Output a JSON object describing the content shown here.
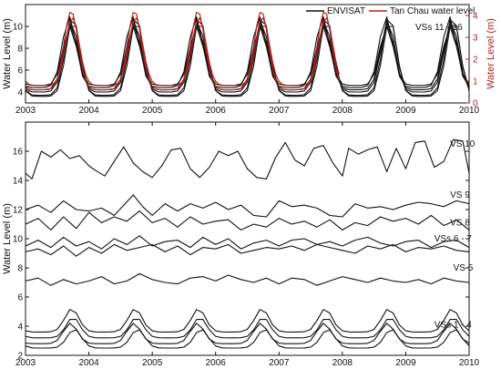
{
  "colors": {
    "envisat": "#111111",
    "tanchau": "#b22222",
    "axis": "#111111",
    "right_axis": "#b22222"
  },
  "chart_data": [
    {
      "type": "line",
      "panel": "top",
      "xlim": [
        2003,
        2010
      ],
      "ylim": [
        3,
        12
      ],
      "y2lim": [
        0,
        4.5
      ],
      "ylabel": "Water Level (m)",
      "y2label": "Water Level (m)",
      "x_ticks": [
        "2003",
        "2004",
        "2005",
        "2006",
        "2007",
        "2008",
        "2009",
        "2010"
      ],
      "y_ticks": [
        "4",
        "6",
        "8",
        "10"
      ],
      "y2_ticks": [
        "0",
        "1",
        "2",
        "3",
        "4"
      ],
      "annotation": "VSs 11 - 16",
      "legend": {
        "placement": "top-right",
        "entries": [
          "ENVISAT",
          "Tan Chau water level"
        ]
      },
      "envisat_series": [
        {
          "name": "ENVISAT",
          "start": 2003.0,
          "end": 2010.0,
          "dx": 0.1,
          "phase": 0.69,
          "low": 4.4,
          "high": 10.9
        },
        {
          "start": 2003.0,
          "end": 2010.0,
          "dx": 0.1,
          "phase": 0.72,
          "low": 4.0,
          "high": 10.6
        },
        {
          "start": 2003.0,
          "end": 2010.0,
          "dx": 0.1,
          "phase": 0.74,
          "low": 3.7,
          "high": 11.1
        },
        {
          "start": 2003.0,
          "end": 2010.0,
          "dx": 0.1,
          "phase": 0.71,
          "low": 4.2,
          "high": 10.3
        },
        {
          "start": 2003.0,
          "end": 2010.0,
          "dx": 0.1,
          "phase": 0.75,
          "low": 3.6,
          "high": 10.7
        },
        {
          "start": 2003.0,
          "end": 2010.0,
          "dx": 0.1,
          "phase": 0.7,
          "low": 4.6,
          "high": 10.0
        }
      ],
      "tanchau_series": [
        {
          "name": "Tan Chau water level",
          "start": 2003.0,
          "end": 2007.95,
          "dx": 0.05,
          "phase": 0.72,
          "low": 0.6,
          "high": 4.2
        },
        {
          "start": 2003.0,
          "end": 2007.95,
          "dx": 0.05,
          "phase": 0.74,
          "low": 0.8,
          "high": 3.9
        }
      ]
    },
    {
      "type": "line",
      "panel": "bottom",
      "xlim": [
        2003,
        2010
      ],
      "ylim": [
        2,
        18
      ],
      "ylabel": "Water Level (m)",
      "x_ticks": [
        "2003",
        "2004",
        "2005",
        "2006",
        "2007",
        "2008",
        "2009",
        "2010"
      ],
      "y_ticks": [
        "2",
        "4",
        "6",
        "8",
        "10",
        "12",
        "14",
        "16"
      ],
      "series": [
        {
          "name": "VS 10",
          "x": [
            2003.0,
            2003.1,
            2003.25,
            2003.4,
            2003.55,
            2003.7,
            2003.85,
            2004.0,
            2004.1,
            2004.25,
            2004.4,
            2004.55,
            2004.7,
            2004.85,
            2005.0,
            2005.15,
            2005.3,
            2005.45,
            2005.6,
            2005.75,
            2005.9,
            2006.05,
            2006.2,
            2006.35,
            2006.5,
            2006.65,
            2006.8,
            2006.95,
            2007.1,
            2007.25,
            2007.4,
            2007.55,
            2007.7,
            2007.85,
            2008.0,
            2008.1,
            2008.25,
            2008.4,
            2008.55,
            2008.7,
            2008.85,
            2009.0,
            2009.15,
            2009.3,
            2009.45,
            2009.6,
            2009.75,
            2009.9,
            2010.0
          ],
          "y": [
            14.5,
            14.1,
            16.0,
            15.6,
            16.1,
            15.5,
            15.7,
            15.0,
            14.7,
            14.3,
            15.3,
            16.3,
            15.2,
            14.6,
            14.2,
            15.0,
            16.1,
            16.2,
            14.8,
            14.2,
            14.9,
            16.0,
            15.7,
            16.0,
            14.8,
            14.2,
            14.1,
            15.6,
            16.6,
            15.4,
            15.0,
            16.2,
            16.4,
            15.2,
            14.3,
            16.2,
            15.8,
            16.1,
            16.3,
            14.6,
            16.2,
            14.8,
            16.6,
            16.7,
            14.9,
            15.3,
            16.8,
            16.7,
            14.5
          ]
        },
        {
          "name": "VS 9",
          "x": [
            2003.0,
            2003.2,
            2003.4,
            2003.6,
            2003.8,
            2004.0,
            2004.2,
            2004.4,
            2004.55,
            2004.7,
            2004.85,
            2005.0,
            2005.2,
            2005.4,
            2005.6,
            2005.8,
            2006.0,
            2006.2,
            2006.4,
            2006.6,
            2006.8,
            2007.0,
            2007.2,
            2007.4,
            2007.6,
            2007.8,
            2008.0,
            2008.2,
            2008.4,
            2008.6,
            2008.8,
            2009.0,
            2009.2,
            2009.4,
            2009.6,
            2009.8,
            2010.0
          ],
          "y": [
            12.0,
            12.3,
            11.8,
            12.6,
            12.0,
            11.9,
            12.1,
            11.6,
            12.3,
            13.0,
            12.2,
            11.6,
            12.4,
            11.9,
            12.4,
            12.1,
            12.5,
            12.0,
            12.3,
            11.6,
            11.5,
            12.6,
            12.2,
            12.3,
            12.1,
            11.6,
            11.5,
            12.4,
            12.1,
            12.2,
            12.0,
            12.3,
            12.5,
            12.4,
            12.2,
            12.6,
            12.4
          ]
        },
        {
          "name": "VS 8",
          "x": [
            2003.0,
            2003.2,
            2003.4,
            2003.6,
            2003.8,
            2004.0,
            2004.2,
            2004.4,
            2004.6,
            2004.8,
            2005.0,
            2005.2,
            2005.4,
            2005.6,
            2005.8,
            2006.0,
            2006.2,
            2006.4,
            2006.6,
            2006.8,
            2007.0,
            2007.2,
            2007.4,
            2007.6,
            2007.8,
            2008.0,
            2008.2,
            2008.4,
            2008.6,
            2008.8,
            2009.0,
            2009.2,
            2009.4,
            2009.6,
            2009.8,
            2010.0
          ],
          "y": [
            11.0,
            11.4,
            10.6,
            11.5,
            10.7,
            11.8,
            11.1,
            11.5,
            11.2,
            11.9,
            11.1,
            11.4,
            10.8,
            11.5,
            11.0,
            11.2,
            11.3,
            10.6,
            11.0,
            10.8,
            11.4,
            11.0,
            11.2,
            10.8,
            11.3,
            10.6,
            11.1,
            10.9,
            11.5,
            11.2,
            11.4,
            11.0,
            11.6,
            10.9,
            11.3,
            10.6
          ]
        },
        {
          "name": "VSs 6 - 7",
          "x": [
            2003.0,
            2003.2,
            2003.4,
            2003.6,
            2003.8,
            2004.0,
            2004.2,
            2004.4,
            2004.6,
            2004.8,
            2005.0,
            2005.2,
            2005.4,
            2005.6,
            2005.8,
            2006.0,
            2006.2,
            2006.4,
            2006.6,
            2006.8,
            2007.0,
            2007.2,
            2007.4,
            2007.6,
            2007.8,
            2008.0,
            2008.2,
            2008.4,
            2008.6,
            2008.8,
            2009.0,
            2009.2,
            2009.4,
            2009.6,
            2009.8,
            2010.0
          ],
          "y": [
            9.5,
            9.9,
            9.4,
            10.1,
            9.5,
            9.8,
            9.3,
            10.0,
            9.6,
            10.2,
            9.5,
            9.8,
            9.9,
            9.4,
            10.1,
            9.6,
            10.0,
            9.3,
            9.7,
            9.9,
            9.5,
            9.9,
            10.0,
            9.6,
            9.8,
            9.5,
            9.9,
            10.1,
            9.7,
            9.5,
            9.8,
            9.9,
            9.4,
            9.8,
            9.9,
            9.4
          ]
        },
        {
          "x": [
            2003.0,
            2003.2,
            2003.4,
            2003.6,
            2003.8,
            2004.0,
            2004.2,
            2004.4,
            2004.6,
            2004.8,
            2005.0,
            2005.2,
            2005.4,
            2005.6,
            2005.8,
            2006.0,
            2006.2,
            2006.4,
            2006.6,
            2006.8,
            2007.0,
            2007.2,
            2007.4,
            2007.6,
            2007.8,
            2008.0,
            2008.2,
            2008.4,
            2008.6,
            2008.8,
            2009.0,
            2009.2,
            2009.4,
            2009.6,
            2009.8,
            2010.0
          ],
          "y": [
            9.1,
            9.3,
            8.9,
            9.5,
            8.8,
            9.4,
            9.0,
            9.6,
            9.2,
            9.4,
            9.6,
            9.1,
            9.5,
            8.9,
            9.4,
            9.3,
            9.6,
            9.0,
            9.2,
            9.4,
            9.3,
            9.5,
            9.2,
            9.6,
            9.4,
            9.2,
            9.0,
            9.5,
            9.3,
            9.6,
            9.1,
            9.4,
            9.3,
            9.5,
            9.2,
            9.1
          ]
        },
        {
          "name": "VS 5",
          "x": [
            2003.0,
            2003.2,
            2003.4,
            2003.6,
            2003.8,
            2004.0,
            2004.2,
            2004.4,
            2004.6,
            2004.8,
            2005.0,
            2005.2,
            2005.4,
            2005.6,
            2005.8,
            2006.0,
            2006.2,
            2006.4,
            2006.6,
            2006.8,
            2007.0,
            2007.2,
            2007.4,
            2007.6,
            2007.8,
            2008.0,
            2008.2,
            2008.4,
            2008.6,
            2008.8,
            2009.0,
            2009.2,
            2009.4,
            2009.6,
            2009.8,
            2010.0
          ],
          "y": [
            7.1,
            7.3,
            6.8,
            7.2,
            6.9,
            7.1,
            7.4,
            6.9,
            7.1,
            7.6,
            7.2,
            7.0,
            6.9,
            7.3,
            7.4,
            7.1,
            7.5,
            7.2,
            7.0,
            7.3,
            6.9,
            7.3,
            7.2,
            6.8,
            7.1,
            7.4,
            7.2,
            7.0,
            7.3,
            7.1,
            7.0,
            7.2,
            6.9,
            7.3,
            7.1,
            7.0
          ]
        }
      ],
      "seasonal_series": [
        {
          "name": "VSs 1 - 4",
          "start": 2003.0,
          "end": 2010.0,
          "dx": 0.1,
          "phase": 0.73,
          "low": 3.6,
          "high": 5.2
        },
        {
          "start": 2003.0,
          "end": 2010.0,
          "dx": 0.1,
          "phase": 0.75,
          "low": 3.2,
          "high": 4.6
        },
        {
          "start": 2003.0,
          "end": 2010.0,
          "dx": 0.1,
          "phase": 0.71,
          "low": 2.8,
          "high": 4.2
        },
        {
          "start": 2003.0,
          "end": 2010.0,
          "dx": 0.1,
          "phase": 0.77,
          "low": 2.5,
          "high": 3.8
        }
      ],
      "labels": [
        {
          "text": "VS 10",
          "x": 2009.7,
          "y": 16.3
        },
        {
          "text": "VS 9",
          "x": 2009.7,
          "y": 12.8
        },
        {
          "text": "VS 8",
          "x": 2009.7,
          "y": 10.9
        },
        {
          "text": "VSs 6 - 7",
          "x": 2009.45,
          "y": 9.8
        },
        {
          "text": "VS 5",
          "x": 2009.75,
          "y": 7.8
        },
        {
          "text": "VSs 1 - 4",
          "x": 2009.45,
          "y": 3.9
        }
      ]
    }
  ]
}
